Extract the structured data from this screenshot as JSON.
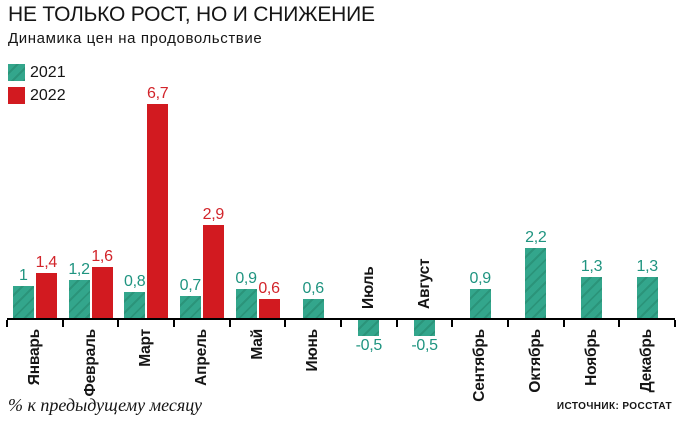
{
  "title": "НЕ ТОЛЬКО РОСТ, НО И СНИЖЕНИЕ",
  "subtitle": "Динамика цен на продовольствие",
  "legend": {
    "items": [
      {
        "label": "2021",
        "color": "#33a68c",
        "hatched": true
      },
      {
        "label": "2022",
        "color": "#d21a20",
        "hatched": false
      }
    ]
  },
  "footer": {
    "left": "% к предыдущему месяцу",
    "right": "ИСТОЧНИК: РОССТАТ"
  },
  "chart_data": {
    "type": "bar",
    "title": "НЕ ТОЛЬКО РОСТ, НО И СНИЖЕНИЕ",
    "subtitle": "Динамика цен на продовольствие",
    "unit_note": "% к предыдущему месяцу",
    "source": "ИСТОЧНИК: РОССТАТ",
    "legend_position": "top-left",
    "grid": false,
    "ylim": [
      -0.8,
      7.2
    ],
    "categories": [
      "Январь",
      "Февраль",
      "Март",
      "Апрель",
      "Май",
      "Июнь",
      "Июль",
      "Август",
      "Сентябрь",
      "Октябрь",
      "Ноябрь",
      "Декабрь"
    ],
    "series": [
      {
        "name": "2021",
        "color": "#33a68c",
        "values": [
          1,
          1.2,
          0.8,
          0.7,
          0.9,
          0.6,
          -0.5,
          -0.5,
          0.9,
          2.2,
          1.3,
          1.3
        ],
        "labels": [
          "1",
          "1,2",
          "0,8",
          "0,7",
          "0,9",
          "0,6",
          "-0,5",
          "-0,5",
          "0,9",
          "2,2",
          "1,3",
          "1,3"
        ]
      },
      {
        "name": "2022",
        "color": "#d21a20",
        "values": [
          1.4,
          1.6,
          6.7,
          2.9,
          0.6,
          null,
          null,
          null,
          null,
          null,
          null,
          null
        ],
        "labels": [
          "1,4",
          "1,6",
          "6,7",
          "2,9",
          "0,6",
          null,
          null,
          null,
          null,
          null,
          null,
          null
        ]
      }
    ]
  }
}
